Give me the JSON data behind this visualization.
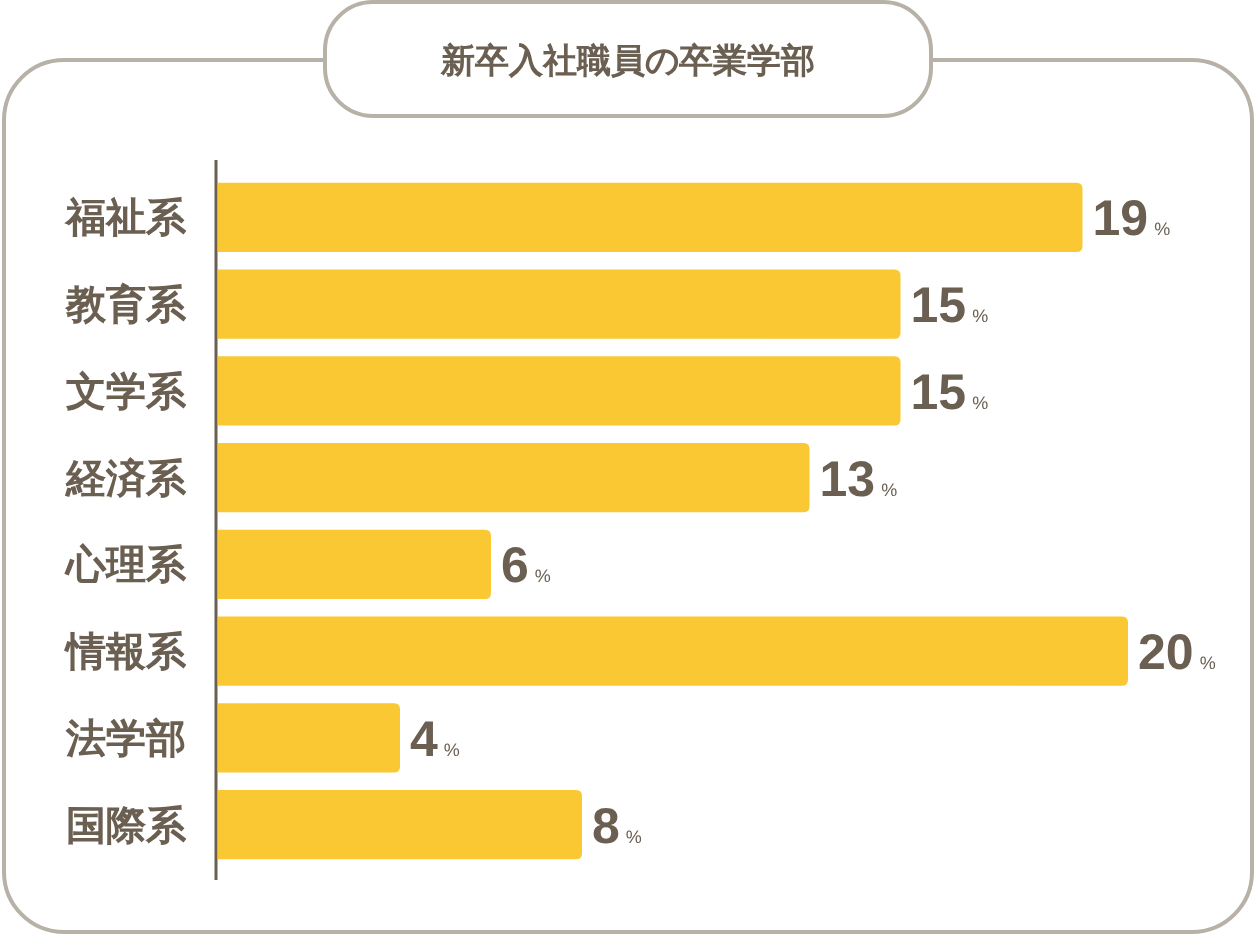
{
  "chart_data": {
    "type": "bar",
    "orientation": "horizontal",
    "title": "新卒入社職員の卒業学部",
    "categories": [
      "福祉系",
      "教育系",
      "文学系",
      "経済系",
      "心理系",
      "情報系",
      "法学部",
      "国際系"
    ],
    "values": [
      19,
      15,
      15,
      13,
      6,
      20,
      4,
      8
    ],
    "color": "#f9c833",
    "value_labels": [
      "19%",
      "15%",
      "15%",
      "13%",
      "6%",
      "20%",
      "4%",
      "8%"
    ]
  }
}
